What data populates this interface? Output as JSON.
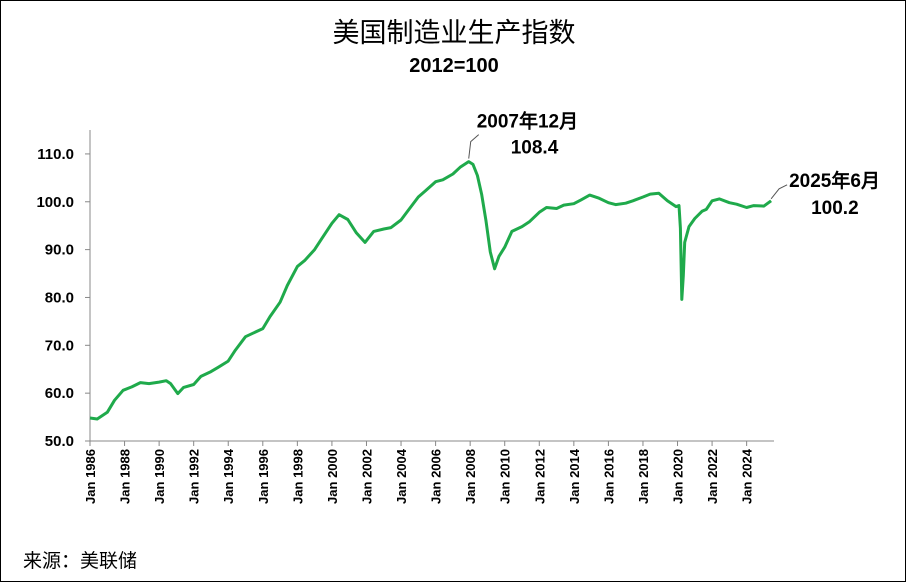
{
  "chart_data": {
    "type": "line",
    "title": "美国制造业生产指数",
    "subtitle": "2012=100",
    "source": "来源：美联储",
    "ylim": [
      50,
      115
    ],
    "yticks": [
      50,
      60,
      70,
      80,
      90,
      100,
      110
    ],
    "ytick_labels": [
      "50.0",
      "60.0",
      "70.0",
      "80.0",
      "90.0",
      "100.0",
      "110.0"
    ],
    "xlim": [
      "1986-01",
      "2025-08"
    ],
    "xticks": [
      "1986-01",
      "1988-01",
      "1990-01",
      "1992-01",
      "1994-01",
      "1996-01",
      "1998-01",
      "2000-01",
      "2002-01",
      "2004-01",
      "2006-01",
      "2008-01",
      "2010-01",
      "2012-01",
      "2014-01",
      "2016-01",
      "2018-01",
      "2020-01",
      "2022-01",
      "2024-01"
    ],
    "xtick_labels": [
      "Jan 1986",
      "Jan 1988",
      "Jan 1990",
      "Jan 1992",
      "Jan 1994",
      "Jan 1996",
      "Jan 1998",
      "Jan 2000",
      "Jan 2002",
      "Jan 2004",
      "Jan 2006",
      "Jan 2008",
      "Jan 2010",
      "Jan 2012",
      "Jan 2014",
      "Jan 2016",
      "Jan 2018",
      "Jan 2020",
      "Jan 2022",
      "Jan 2024"
    ],
    "grid": false,
    "series": [
      {
        "color": "#1faa4b",
        "points": [
          [
            "1986-01",
            54.8
          ],
          [
            "1986-06",
            54.6
          ],
          [
            "1987-01",
            56.0
          ],
          [
            "1987-06",
            58.5
          ],
          [
            "1987-12",
            60.6
          ],
          [
            "1988-06",
            61.3
          ],
          [
            "1988-12",
            62.2
          ],
          [
            "1989-06",
            62.0
          ],
          [
            "1990-01",
            62.3
          ],
          [
            "1990-06",
            62.6
          ],
          [
            "1990-09",
            62.0
          ],
          [
            "1991-02",
            59.9
          ],
          [
            "1991-06",
            61.2
          ],
          [
            "1992-01",
            61.8
          ],
          [
            "1992-06",
            63.5
          ],
          [
            "1993-01",
            64.5
          ],
          [
            "1993-06",
            65.4
          ],
          [
            "1994-01",
            66.7
          ],
          [
            "1994-06",
            69.0
          ],
          [
            "1995-01",
            71.8
          ],
          [
            "1995-06",
            72.5
          ],
          [
            "1996-01",
            73.5
          ],
          [
            "1996-06",
            76.0
          ],
          [
            "1997-01",
            79.0
          ],
          [
            "1997-06",
            82.5
          ],
          [
            "1998-01",
            86.5
          ],
          [
            "1998-06",
            87.7
          ],
          [
            "1999-01",
            90.0
          ],
          [
            "1999-06",
            92.3
          ],
          [
            "2000-01",
            95.5
          ],
          [
            "2000-06",
            97.3
          ],
          [
            "2000-12",
            96.3
          ],
          [
            "2001-06",
            93.5
          ],
          [
            "2001-12",
            91.5
          ],
          [
            "2002-06",
            93.8
          ],
          [
            "2003-01",
            94.3
          ],
          [
            "2003-06",
            94.6
          ],
          [
            "2004-01",
            96.2
          ],
          [
            "2004-06",
            98.2
          ],
          [
            "2005-01",
            101.0
          ],
          [
            "2005-06",
            102.3
          ],
          [
            "2006-01",
            104.2
          ],
          [
            "2006-06",
            104.6
          ],
          [
            "2007-01",
            105.8
          ],
          [
            "2007-06",
            107.2
          ],
          [
            "2007-12",
            108.4
          ],
          [
            "2008-03",
            107.8
          ],
          [
            "2008-06",
            105.5
          ],
          [
            "2008-09",
            101.5
          ],
          [
            "2008-12",
            96.0
          ],
          [
            "2009-03",
            89.5
          ],
          [
            "2009-06",
            86.0
          ],
          [
            "2009-09",
            88.6
          ],
          [
            "2010-01",
            90.5
          ],
          [
            "2010-06",
            93.8
          ],
          [
            "2011-01",
            94.8
          ],
          [
            "2011-06",
            95.8
          ],
          [
            "2012-01",
            97.8
          ],
          [
            "2012-06",
            98.8
          ],
          [
            "2013-01",
            98.6
          ],
          [
            "2013-06",
            99.3
          ],
          [
            "2014-01",
            99.6
          ],
          [
            "2014-06",
            100.4
          ],
          [
            "2014-12",
            101.4
          ],
          [
            "2015-06",
            100.8
          ],
          [
            "2016-01",
            99.8
          ],
          [
            "2016-06",
            99.4
          ],
          [
            "2017-01",
            99.7
          ],
          [
            "2017-06",
            100.2
          ],
          [
            "2018-01",
            101.0
          ],
          [
            "2018-06",
            101.6
          ],
          [
            "2018-12",
            101.8
          ],
          [
            "2019-06",
            100.2
          ],
          [
            "2019-12",
            99.0
          ],
          [
            "2020-02",
            99.2
          ],
          [
            "2020-03",
            94.5
          ],
          [
            "2020-04",
            79.6
          ],
          [
            "2020-05",
            84.5
          ],
          [
            "2020-06",
            91.5
          ],
          [
            "2020-09",
            94.8
          ],
          [
            "2021-01",
            96.5
          ],
          [
            "2021-06",
            98.0
          ],
          [
            "2021-09",
            98.4
          ],
          [
            "2022-01",
            100.2
          ],
          [
            "2022-06",
            100.6
          ],
          [
            "2023-01",
            99.8
          ],
          [
            "2023-06",
            99.5
          ],
          [
            "2024-01",
            98.8
          ],
          [
            "2024-06",
            99.2
          ],
          [
            "2025-01",
            99.1
          ],
          [
            "2025-06",
            100.2
          ]
        ]
      }
    ],
    "annotations": [
      {
        "date": "2007-12",
        "value": 108.4,
        "label_line1": "2007年12月",
        "label_line2": "108.4"
      },
      {
        "date": "2025-06",
        "value": 100.2,
        "label_line1": "2025年6月",
        "label_line2": "100.2"
      }
    ]
  }
}
